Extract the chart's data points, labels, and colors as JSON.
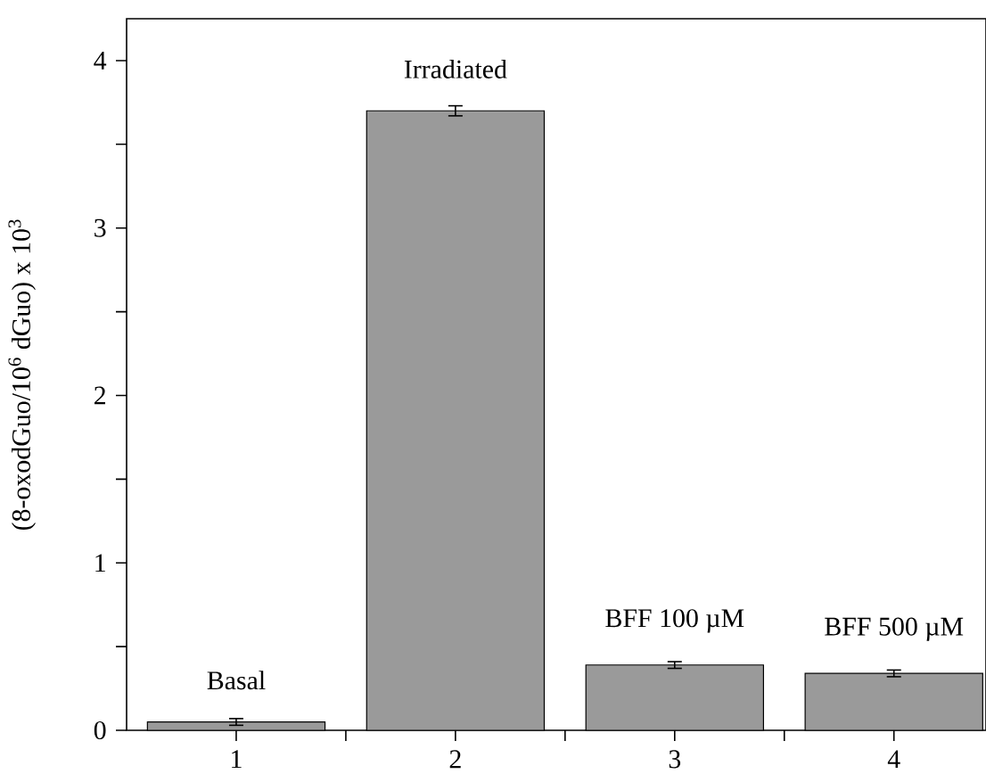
{
  "chart_data": {
    "type": "bar",
    "ylabel": "(8-oxodGuo/10$^{6}$ dGuo) x 10$^{3}$",
    "categories": [
      "1",
      "2",
      "3",
      "4"
    ],
    "values": [
      0.05,
      3.7,
      0.39,
      0.34
    ],
    "errors": [
      0.02,
      0.03,
      0.02,
      0.02
    ],
    "color": "#9a9a9a",
    "ylim": [
      0,
      4.25
    ],
    "yticks": [
      0,
      {
        "value": 0.5,
        "label": null
      },
      1,
      {
        "value": 1.5,
        "label": null
      },
      2,
      {
        "value": 2.5,
        "label": null
      },
      3,
      {
        "value": 3.5,
        "label": null
      },
      4
    ],
    "annotations": [
      {
        "text": "Basal",
        "x": "1",
        "y": 0.05
      },
      {
        "text": "Irradiated",
        "x": "2",
        "y": 3.7
      },
      {
        "text": "BFF 100 µM",
        "x": "3",
        "y": 0.39
      },
      {
        "text": "BFF 500 µM",
        "x": "4",
        "y": 0.34
      }
    ],
    "grid": false
  }
}
